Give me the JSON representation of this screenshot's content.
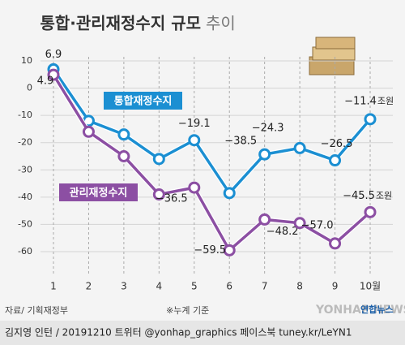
{
  "chart_data": {
    "type": "line",
    "title": "통합·관리재정수지 규모",
    "title_suffix": "추이",
    "categories": [
      "1",
      "2",
      "3",
      "4",
      "5",
      "6",
      "7",
      "8",
      "9",
      "10월"
    ],
    "series": [
      {
        "name": "통합재정수지",
        "color": "#1b8fd2",
        "values": [
          6.9,
          -12,
          -17,
          -26,
          -19.1,
          -38.5,
          -24.3,
          -22,
          -26.5,
          -11.4
        ],
        "value_labels": [
          "6.9",
          null,
          null,
          null,
          "−19.1",
          "−38.5",
          "−24.3",
          null,
          "−26.5",
          "−11.4"
        ]
      },
      {
        "name": "관리재정수지",
        "color": "#8c4fa3",
        "values": [
          4.9,
          -16,
          -25,
          -39,
          -36.5,
          -59.5,
          -48.2,
          -49.5,
          -57.0,
          -45.5
        ],
        "value_labels": [
          "4.9",
          null,
          null,
          null,
          "−36.5",
          "−59.5",
          "−48.2",
          null,
          "−57.0",
          "−45.5"
        ]
      }
    ],
    "unit": "조원",
    "ylim": [
      -60,
      10
    ],
    "yticks": [
      10,
      0,
      -10,
      -20,
      -30,
      -40,
      -50,
      -60
    ],
    "grid": true,
    "source": "자료/ 기획재정부",
    "note": "※누계 기준",
    "credit": "김지영 인턴 / 20191210 트위터 @yonhap_graphics  페이스북 tuney.kr/LeYN1",
    "logo": "연합뉴스",
    "watermark": "YONHAP NEWS"
  }
}
